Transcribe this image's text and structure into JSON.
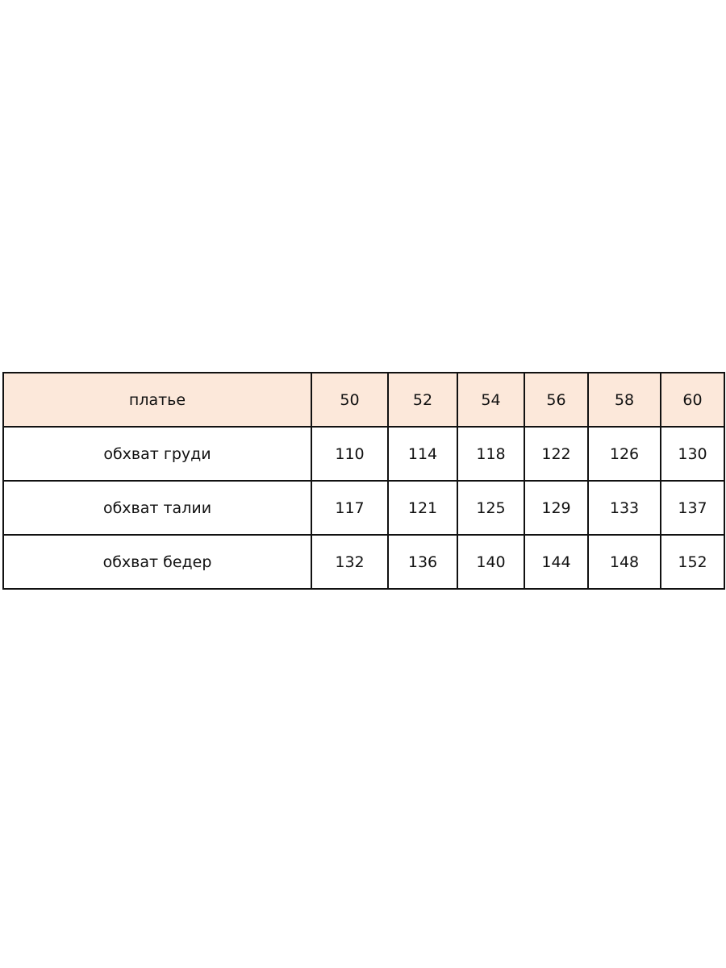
{
  "table": {
    "header": {
      "label": "платье",
      "sizes": [
        "50",
        "52",
        "54",
        "56",
        "58",
        "60"
      ]
    },
    "rows": [
      {
        "label": "обхват груди",
        "values": [
          "110",
          "114",
          "118",
          "122",
          "126",
          "130"
        ]
      },
      {
        "label": "обхват талии",
        "values": [
          "117",
          "121",
          "125",
          "129",
          "133",
          "137"
        ]
      },
      {
        "label": "обхват бедер",
        "values": [
          "132",
          "136",
          "140",
          "144",
          "148",
          "152"
        ]
      }
    ],
    "header_color": "#fce8da"
  }
}
